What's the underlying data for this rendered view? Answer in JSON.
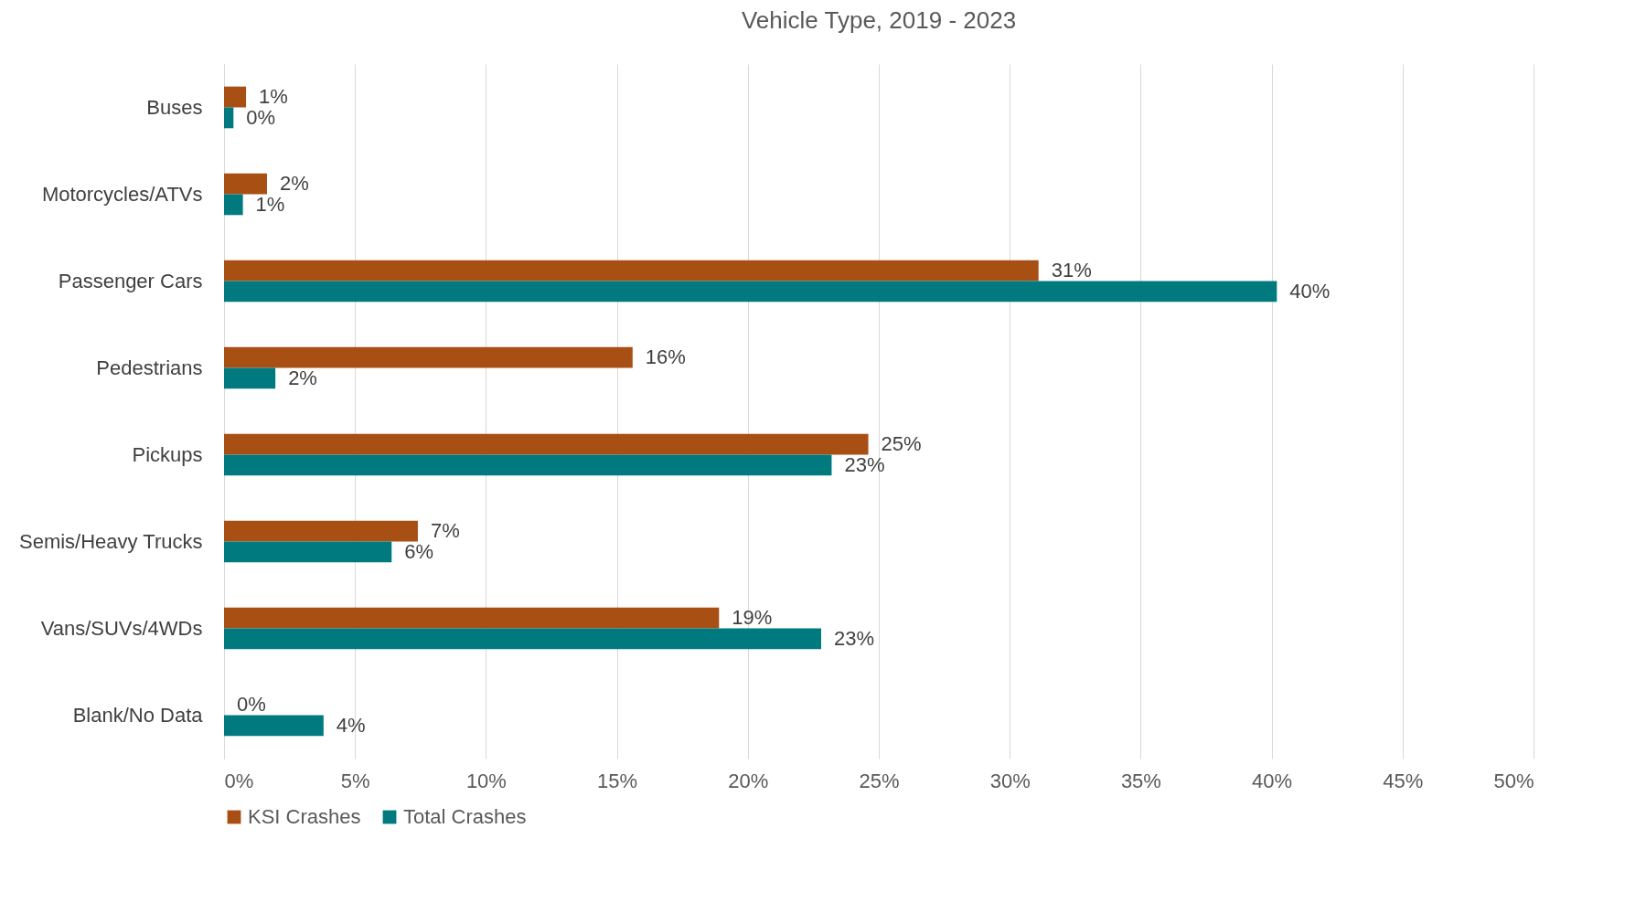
{
  "chart_data": {
    "type": "bar",
    "orientation": "horizontal",
    "title": "Vehicle Type, 2019 - 2023",
    "categories": [
      "Buses",
      "Motorcycles/ATVs",
      "Passenger Cars",
      "Pedestrians",
      "Pickups",
      "Semis/Heavy Trucks",
      "Vans/SUVs/4WDs",
      "Blank/No Data"
    ],
    "series": [
      {
        "name": "KSI Crashes",
        "color": "#a84f14",
        "values": [
          0.84,
          1.64,
          31.1,
          15.6,
          24.6,
          7.4,
          18.9,
          0
        ],
        "value_labels": [
          "1%",
          "2%",
          "31%",
          "16%",
          "25%",
          "7%",
          "19%",
          "0%"
        ]
      },
      {
        "name": "Total Crashes",
        "color": "#007a7e",
        "values": [
          0.36,
          0.72,
          40.2,
          1.96,
          23.2,
          6.4,
          22.8,
          3.8
        ],
        "value_labels": [
          "0%",
          "1%",
          "40%",
          "2%",
          "23%",
          "6%",
          "23%",
          "4%"
        ]
      }
    ],
    "xlim": [
      0,
      50
    ],
    "xticks": [
      {
        "value": 0,
        "label": "0%"
      },
      {
        "value": 5,
        "label": "5%"
      },
      {
        "value": 10,
        "label": "10%"
      },
      {
        "value": 15,
        "label": "15%"
      },
      {
        "value": 20,
        "label": "20%"
      },
      {
        "value": 25,
        "label": "25%"
      },
      {
        "value": 30,
        "label": "30%"
      },
      {
        "value": 35,
        "label": "35%"
      },
      {
        "value": 40,
        "label": "40%"
      },
      {
        "value": 45,
        "label": "45%"
      },
      {
        "value": 50,
        "label": "50%"
      }
    ],
    "grid": "x",
    "legend": "bottom"
  }
}
